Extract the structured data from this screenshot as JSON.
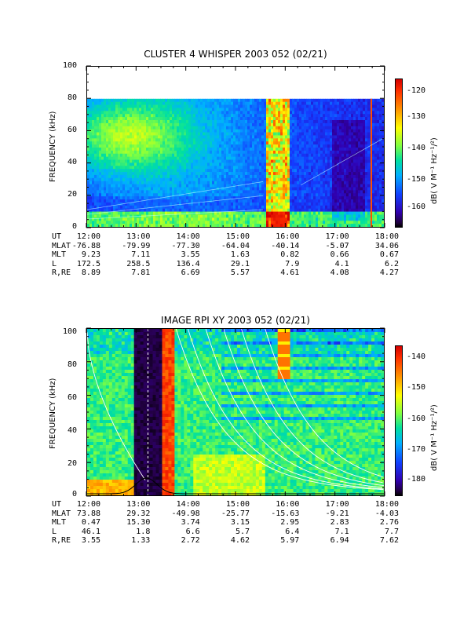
{
  "chart_data": [
    {
      "type": "heatmap",
      "title": "CLUSTER 4 WHISPER 2003 052 (02/21)",
      "ylabel": "FREQUENCY (kHz)",
      "colorbar_label": "dB( V M⁻¹ Hz⁻¹/²)",
      "ylim": [
        0,
        100
      ],
      "yticks": [
        "0",
        "20",
        "40",
        "60",
        "80",
        "100"
      ],
      "colorbar_range": [
        -166,
        -117
      ],
      "colorbar_ticks": [
        "-120",
        "-130",
        "-140",
        "-150",
        "-160"
      ],
      "xticks": [
        "12:00",
        "13:00",
        "14:00",
        "15:00",
        "16:00",
        "17:00",
        "18:00"
      ],
      "data_top_khz": 80,
      "ephemeris": [
        {
          "label": "UT",
          "values": [
            "12:00",
            "13:00",
            "14:00",
            "15:00",
            "16:00",
            "17:00",
            "18:00"
          ]
        },
        {
          "label": "MLAT",
          "values": [
            "-76.88",
            "-79.99",
            "-77.30",
            "-64.04",
            "-40.14",
            "-5.07",
            "34.06"
          ]
        },
        {
          "label": "MLT",
          "values": [
            "9.23",
            "7.11",
            "3.55",
            "1.63",
            "0.82",
            "0.66",
            "0.67"
          ]
        },
        {
          "label": "L",
          "values": [
            "172.5",
            "258.5",
            "136.4",
            "29.1",
            "7.9",
            "4.1",
            "6.2"
          ]
        },
        {
          "label": "R,RE",
          "values": [
            "8.89",
            "7.81",
            "6.69",
            "5.57",
            "4.61",
            "4.08",
            "4.27"
          ]
        }
      ]
    },
    {
      "type": "heatmap",
      "title": "IMAGE RPI XY 2003 052 (02/21)",
      "ylabel": "FREQUENCY (kHz)",
      "colorbar_label": "dB( V M⁻¹ Hz⁻¹/²)",
      "ylim": [
        0,
        100
      ],
      "yticks": [
        "0",
        "20",
        "40",
        "60",
        "80",
        "100"
      ],
      "colorbar_range": [
        -185,
        -135
      ],
      "colorbar_ticks": [
        "-140",
        "-150",
        "-160",
        "-170",
        "-180"
      ],
      "xticks": [
        "12:00",
        "13:00",
        "14:00",
        "15:00",
        "16:00",
        "17:00",
        "18:00"
      ],
      "ephemeris": [
        {
          "label": "UT",
          "values": [
            "12:00",
            "13:00",
            "14:00",
            "15:00",
            "16:00",
            "17:00",
            "18:00"
          ]
        },
        {
          "label": "MLAT",
          "values": [
            "73.88",
            "29.32",
            "-49.98",
            "-25.77",
            "-15.63",
            "-9.21",
            "-4.03"
          ]
        },
        {
          "label": "MLT",
          "values": [
            "0.47",
            "15.30",
            "3.74",
            "3.15",
            "2.95",
            "2.83",
            "2.76"
          ]
        },
        {
          "label": "L",
          "values": [
            "46.1",
            "1.8",
            "6.6",
            "5.7",
            "6.4",
            "7.1",
            "7.7"
          ]
        },
        {
          "label": "R,RE",
          "values": [
            "3.55",
            "1.33",
            "2.72",
            "4.62",
            "5.97",
            "6.94",
            "7.62"
          ]
        }
      ]
    }
  ]
}
